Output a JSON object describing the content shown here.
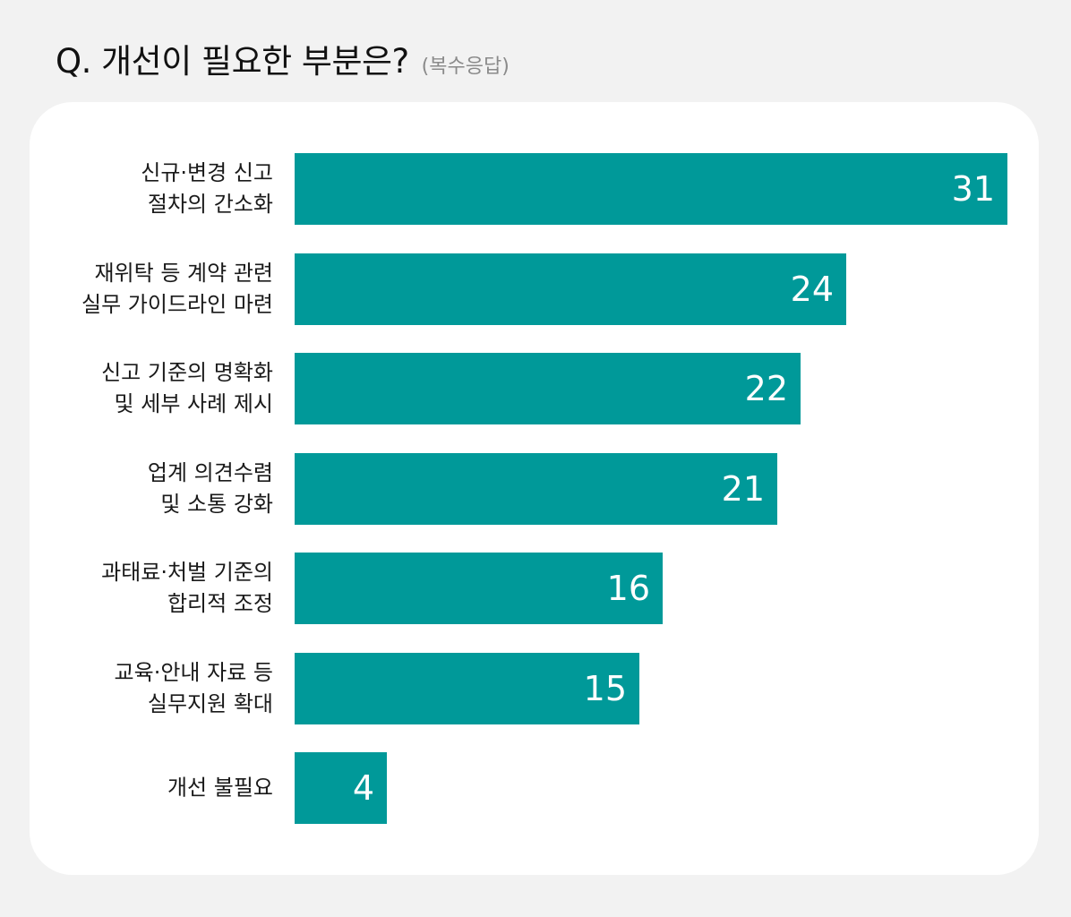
{
  "header": {
    "title": "Q. 개선이 필요한 부분은?",
    "subtitle": "(복수응답)"
  },
  "colors": {
    "bar": "#009999",
    "background": "#f2f2f2",
    "card": "#ffffff"
  },
  "chart_data": {
    "type": "bar",
    "orientation": "horizontal",
    "categories": [
      [
        "신규·변경 신고",
        "절차의 간소화"
      ],
      [
        "재위탁 등 계약 관련",
        "실무 가이드라인 마련"
      ],
      [
        "신고 기준의 명확화",
        "및 세부 사례 제시"
      ],
      [
        "업계 의견수렴",
        "및 소통 강화"
      ],
      [
        "과태료·처벌 기준의",
        "합리적 조정"
      ],
      [
        "교육·안내 자료 등",
        "실무지원 확대"
      ],
      [
        "개선 불필요"
      ]
    ],
    "values": [
      31,
      24,
      22,
      21,
      16,
      15,
      4
    ],
    "xlim": [
      0,
      31
    ],
    "grid": false,
    "legend": "none"
  }
}
